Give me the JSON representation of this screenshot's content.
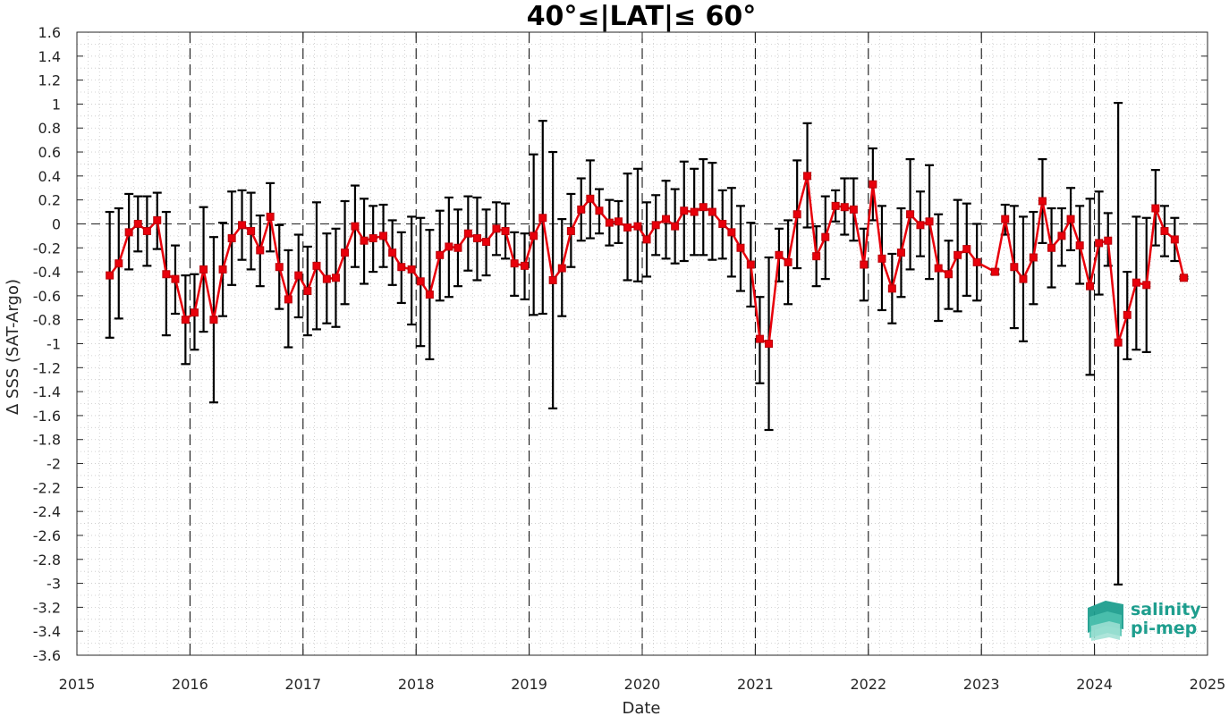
{
  "chart_data": {
    "type": "line",
    "title": "40°≤|LAT|≤ 60°",
    "xlabel": "Date",
    "ylabel": "Δ SSS (SAT-Argo)",
    "xlim": [
      2015,
      2025
    ],
    "ylim": [
      -3.6,
      1.6
    ],
    "xticks": [
      2015,
      2016,
      2017,
      2018,
      2019,
      2020,
      2021,
      2022,
      2023,
      2024,
      2025
    ],
    "yticks": [
      "1.6",
      "1.4",
      "1.2",
      "1",
      "0.8",
      "0.6",
      "0.4",
      "0.2",
      "0",
      "-0.2",
      "-0.4",
      "-0.6",
      "-0.8",
      "-1",
      "-1.2",
      "-1.4",
      "-1.6",
      "-1.8",
      "-2",
      "-2.2",
      "-2.4",
      "-2.6",
      "-2.8",
      "-3",
      "-3.2",
      "-3.4",
      "-3.6"
    ],
    "grid": "dotted",
    "year_markers": "dashed vertical lines at each January",
    "series": [
      {
        "color": "#e8000b",
        "marker": "square",
        "errorbar_color": "#000000",
        "points": [
          {
            "x": 2015.29,
            "y": -0.43,
            "lo": -0.95,
            "hi": 0.1
          },
          {
            "x": 2015.37,
            "y": -0.33,
            "lo": -0.79,
            "hi": 0.13
          },
          {
            "x": 2015.46,
            "y": -0.07,
            "lo": -0.38,
            "hi": 0.25
          },
          {
            "x": 2015.54,
            "y": 0.0,
            "lo": -0.23,
            "hi": 0.23
          },
          {
            "x": 2015.62,
            "y": -0.06,
            "lo": -0.35,
            "hi": 0.23
          },
          {
            "x": 2015.71,
            "y": 0.03,
            "lo": -0.21,
            "hi": 0.26
          },
          {
            "x": 2015.79,
            "y": -0.42,
            "lo": -0.93,
            "hi": 0.1
          },
          {
            "x": 2015.87,
            "y": -0.46,
            "lo": -0.75,
            "hi": -0.18
          },
          {
            "x": 2015.96,
            "y": -0.8,
            "lo": -1.17,
            "hi": -0.43
          },
          {
            "x": 2016.04,
            "y": -0.74,
            "lo": -1.05,
            "hi": -0.42
          },
          {
            "x": 2016.12,
            "y": -0.38,
            "lo": -0.9,
            "hi": 0.14
          },
          {
            "x": 2016.21,
            "y": -0.8,
            "lo": -1.49,
            "hi": -0.11
          },
          {
            "x": 2016.29,
            "y": -0.38,
            "lo": -0.77,
            "hi": 0.01
          },
          {
            "x": 2016.37,
            "y": -0.12,
            "lo": -0.51,
            "hi": 0.27
          },
          {
            "x": 2016.46,
            "y": -0.01,
            "lo": -0.3,
            "hi": 0.28
          },
          {
            "x": 2016.54,
            "y": -0.06,
            "lo": -0.38,
            "hi": 0.26
          },
          {
            "x": 2016.62,
            "y": -0.22,
            "lo": -0.52,
            "hi": 0.07
          },
          {
            "x": 2016.71,
            "y": 0.06,
            "lo": -0.23,
            "hi": 0.34
          },
          {
            "x": 2016.79,
            "y": -0.36,
            "lo": -0.71,
            "hi": -0.01
          },
          {
            "x": 2016.87,
            "y": -0.63,
            "lo": -1.03,
            "hi": -0.22
          },
          {
            "x": 2016.96,
            "y": -0.43,
            "lo": -0.78,
            "hi": -0.09
          },
          {
            "x": 2017.04,
            "y": -0.56,
            "lo": -0.93,
            "hi": -0.19
          },
          {
            "x": 2017.12,
            "y": -0.35,
            "lo": -0.88,
            "hi": 0.18
          },
          {
            "x": 2017.21,
            "y": -0.46,
            "lo": -0.83,
            "hi": -0.08
          },
          {
            "x": 2017.29,
            "y": -0.45,
            "lo": -0.86,
            "hi": -0.04
          },
          {
            "x": 2017.37,
            "y": -0.24,
            "lo": -0.67,
            "hi": 0.19
          },
          {
            "x": 2017.46,
            "y": -0.02,
            "lo": -0.36,
            "hi": 0.32
          },
          {
            "x": 2017.54,
            "y": -0.14,
            "lo": -0.5,
            "hi": 0.21
          },
          {
            "x": 2017.62,
            "y": -0.12,
            "lo": -0.4,
            "hi": 0.15
          },
          {
            "x": 2017.71,
            "y": -0.1,
            "lo": -0.36,
            "hi": 0.16
          },
          {
            "x": 2017.79,
            "y": -0.24,
            "lo": -0.51,
            "hi": 0.03
          },
          {
            "x": 2017.87,
            "y": -0.36,
            "lo": -0.66,
            "hi": -0.07
          },
          {
            "x": 2017.96,
            "y": -0.38,
            "lo": -0.84,
            "hi": 0.06
          },
          {
            "x": 2018.04,
            "y": -0.48,
            "lo": -1.02,
            "hi": 0.05
          },
          {
            "x": 2018.12,
            "y": -0.59,
            "lo": -1.13,
            "hi": -0.05
          },
          {
            "x": 2018.21,
            "y": -0.26,
            "lo": -0.64,
            "hi": 0.11
          },
          {
            "x": 2018.29,
            "y": -0.19,
            "lo": -0.61,
            "hi": 0.22
          },
          {
            "x": 2018.37,
            "y": -0.2,
            "lo": -0.52,
            "hi": 0.12
          },
          {
            "x": 2018.46,
            "y": -0.08,
            "lo": -0.39,
            "hi": 0.23
          },
          {
            "x": 2018.54,
            "y": -0.12,
            "lo": -0.47,
            "hi": 0.22
          },
          {
            "x": 2018.62,
            "y": -0.15,
            "lo": -0.43,
            "hi": 0.12
          },
          {
            "x": 2018.71,
            "y": -0.04,
            "lo": -0.26,
            "hi": 0.18
          },
          {
            "x": 2018.79,
            "y": -0.06,
            "lo": -0.29,
            "hi": 0.17
          },
          {
            "x": 2018.87,
            "y": -0.33,
            "lo": -0.6,
            "hi": -0.07
          },
          {
            "x": 2018.96,
            "y": -0.35,
            "lo": -0.63,
            "hi": -0.08
          },
          {
            "x": 2019.04,
            "y": -0.1,
            "lo": -0.76,
            "hi": 0.58
          },
          {
            "x": 2019.12,
            "y": 0.05,
            "lo": -0.75,
            "hi": 0.86
          },
          {
            "x": 2019.21,
            "y": -0.47,
            "lo": -1.54,
            "hi": 0.6
          },
          {
            "x": 2019.29,
            "y": -0.37,
            "lo": -0.77,
            "hi": 0.04
          },
          {
            "x": 2019.37,
            "y": -0.06,
            "lo": -0.36,
            "hi": 0.25
          },
          {
            "x": 2019.46,
            "y": 0.12,
            "lo": -0.14,
            "hi": 0.38
          },
          {
            "x": 2019.54,
            "y": 0.21,
            "lo": -0.12,
            "hi": 0.53
          },
          {
            "x": 2019.62,
            "y": 0.11,
            "lo": -0.08,
            "hi": 0.29
          },
          {
            "x": 2019.71,
            "y": 0.01,
            "lo": -0.18,
            "hi": 0.2
          },
          {
            "x": 2019.79,
            "y": 0.02,
            "lo": -0.16,
            "hi": 0.19
          },
          {
            "x": 2019.87,
            "y": -0.03,
            "lo": -0.47,
            "hi": 0.42
          },
          {
            "x": 2019.96,
            "y": -0.02,
            "lo": -0.48,
            "hi": 0.46
          },
          {
            "x": 2020.04,
            "y": -0.13,
            "lo": -0.44,
            "hi": 0.18
          },
          {
            "x": 2020.12,
            "y": -0.01,
            "lo": -0.26,
            "hi": 0.24
          },
          {
            "x": 2020.21,
            "y": 0.04,
            "lo": -0.29,
            "hi": 0.36
          },
          {
            "x": 2020.29,
            "y": -0.02,
            "lo": -0.33,
            "hi": 0.29
          },
          {
            "x": 2020.37,
            "y": 0.11,
            "lo": -0.31,
            "hi": 0.52
          },
          {
            "x": 2020.46,
            "y": 0.1,
            "lo": -0.26,
            "hi": 0.46
          },
          {
            "x": 2020.54,
            "y": 0.14,
            "lo": -0.26,
            "hi": 0.54
          },
          {
            "x": 2020.62,
            "y": 0.1,
            "lo": -0.3,
            "hi": 0.51
          },
          {
            "x": 2020.71,
            "y": 0.0,
            "lo": -0.29,
            "hi": 0.28
          },
          {
            "x": 2020.79,
            "y": -0.07,
            "lo": -0.44,
            "hi": 0.3
          },
          {
            "x": 2020.87,
            "y": -0.2,
            "lo": -0.56,
            "hi": 0.15
          },
          {
            "x": 2020.96,
            "y": -0.34,
            "lo": -0.69,
            "hi": 0.01
          },
          {
            "x": 2021.04,
            "y": -0.96,
            "lo": -1.33,
            "hi": -0.61
          },
          {
            "x": 2021.12,
            "y": -1.0,
            "lo": -1.72,
            "hi": -0.28
          },
          {
            "x": 2021.21,
            "y": -0.26,
            "lo": -0.48,
            "hi": -0.04
          },
          {
            "x": 2021.29,
            "y": -0.32,
            "lo": -0.67,
            "hi": 0.03
          },
          {
            "x": 2021.37,
            "y": 0.08,
            "lo": -0.37,
            "hi": 0.53
          },
          {
            "x": 2021.46,
            "y": 0.4,
            "lo": -0.03,
            "hi": 0.84
          },
          {
            "x": 2021.54,
            "y": -0.27,
            "lo": -0.52,
            "hi": -0.02
          },
          {
            "x": 2021.62,
            "y": -0.11,
            "lo": -0.46,
            "hi": 0.23
          },
          {
            "x": 2021.71,
            "y": 0.15,
            "lo": 0.02,
            "hi": 0.28
          },
          {
            "x": 2021.79,
            "y": 0.14,
            "lo": -0.09,
            "hi": 0.38
          },
          {
            "x": 2021.87,
            "y": 0.12,
            "lo": -0.14,
            "hi": 0.38
          },
          {
            "x": 2021.96,
            "y": -0.34,
            "lo": -0.64,
            "hi": -0.04
          },
          {
            "x": 2022.04,
            "y": 0.33,
            "lo": 0.03,
            "hi": 0.63
          },
          {
            "x": 2022.12,
            "y": -0.29,
            "lo": -0.72,
            "hi": 0.15
          },
          {
            "x": 2022.21,
            "y": -0.54,
            "lo": -0.83,
            "hi": -0.25
          },
          {
            "x": 2022.29,
            "y": -0.24,
            "lo": -0.61,
            "hi": 0.13
          },
          {
            "x": 2022.37,
            "y": 0.08,
            "lo": -0.38,
            "hi": 0.54
          },
          {
            "x": 2022.46,
            "y": -0.01,
            "lo": -0.27,
            "hi": 0.27
          },
          {
            "x": 2022.54,
            "y": 0.02,
            "lo": -0.46,
            "hi": 0.49
          },
          {
            "x": 2022.62,
            "y": -0.37,
            "lo": -0.81,
            "hi": 0.08
          },
          {
            "x": 2022.71,
            "y": -0.42,
            "lo": -0.71,
            "hi": -0.14
          },
          {
            "x": 2022.79,
            "y": -0.26,
            "lo": -0.73,
            "hi": 0.2
          },
          {
            "x": 2022.87,
            "y": -0.21,
            "lo": -0.6,
            "hi": 0.17
          },
          {
            "x": 2022.96,
            "y": -0.32,
            "lo": -0.64,
            "hi": 0.0
          },
          {
            "x": 2023.12,
            "y": -0.4,
            "lo": -0.42,
            "hi": -0.38
          },
          {
            "x": 2023.21,
            "y": 0.04,
            "lo": -0.09,
            "hi": 0.16
          },
          {
            "x": 2023.29,
            "y": -0.36,
            "lo": -0.87,
            "hi": 0.15
          },
          {
            "x": 2023.37,
            "y": -0.46,
            "lo": -0.98,
            "hi": 0.06
          },
          {
            "x": 2023.46,
            "y": -0.28,
            "lo": -0.67,
            "hi": 0.1
          },
          {
            "x": 2023.54,
            "y": 0.19,
            "lo": -0.16,
            "hi": 0.54
          },
          {
            "x": 2023.62,
            "y": -0.2,
            "lo": -0.53,
            "hi": 0.13
          },
          {
            "x": 2023.71,
            "y": -0.1,
            "lo": -0.35,
            "hi": 0.13
          },
          {
            "x": 2023.79,
            "y": 0.04,
            "lo": -0.22,
            "hi": 0.3
          },
          {
            "x": 2023.87,
            "y": -0.18,
            "lo": -0.5,
            "hi": 0.15
          },
          {
            "x": 2023.96,
            "y": -0.52,
            "lo": -1.26,
            "hi": 0.21
          },
          {
            "x": 2024.04,
            "y": -0.16,
            "lo": -0.59,
            "hi": 0.27
          },
          {
            "x": 2024.12,
            "y": -0.14,
            "lo": -0.35,
            "hi": 0.09
          },
          {
            "x": 2024.21,
            "y": -0.99,
            "lo": -3.01,
            "hi": 1.01
          },
          {
            "x": 2024.29,
            "y": -0.76,
            "lo": -1.13,
            "hi": -0.4
          },
          {
            "x": 2024.37,
            "y": -0.49,
            "lo": -1.05,
            "hi": 0.06
          },
          {
            "x": 2024.46,
            "y": -0.51,
            "lo": -1.07,
            "hi": 0.05
          },
          {
            "x": 2024.54,
            "y": 0.13,
            "lo": -0.18,
            "hi": 0.45
          },
          {
            "x": 2024.62,
            "y": -0.06,
            "lo": -0.27,
            "hi": 0.15
          },
          {
            "x": 2024.71,
            "y": -0.13,
            "lo": -0.31,
            "hi": 0.05
          },
          {
            "x": 2024.79,
            "y": -0.45,
            "lo": -0.46,
            "hi": -0.44
          }
        ]
      }
    ]
  },
  "logo": {
    "line1": "salinity",
    "line2": "pi-mep",
    "color": "#1e9e8e"
  }
}
